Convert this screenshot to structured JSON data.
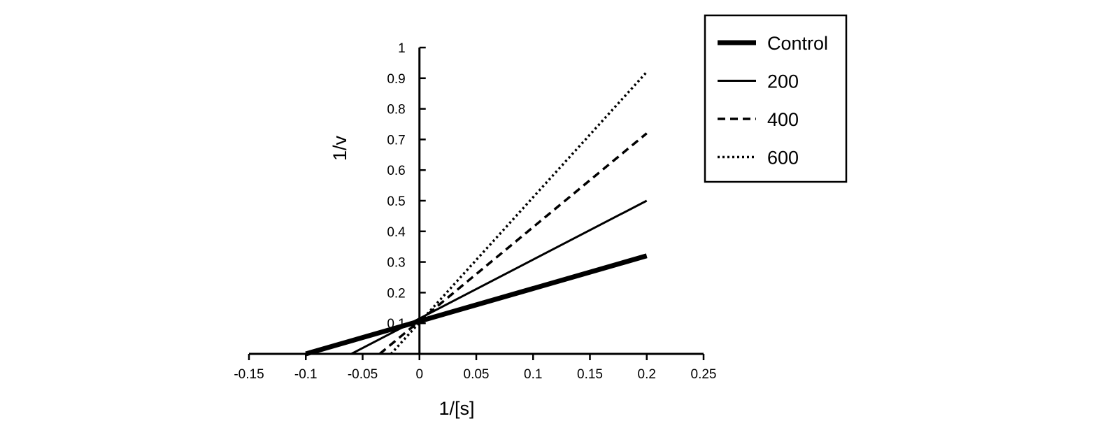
{
  "chart_data": {
    "type": "line",
    "xlabel": "1/[s]",
    "ylabel": "1/v",
    "xlim": [
      -0.15,
      0.25
    ],
    "ylim": [
      0,
      1
    ],
    "x_ticks": [
      -0.15,
      -0.1,
      -0.05,
      0,
      0.05,
      0.1,
      0.15,
      0.2,
      0.25
    ],
    "x_tick_labels": [
      "-0.15",
      "-0.1",
      "-0.05",
      "0",
      "0.05",
      "0.1",
      "0.15",
      "0.2",
      "0.25"
    ],
    "y_ticks": [
      0.1,
      0.2,
      0.3,
      0.4,
      0.5,
      0.6,
      0.7,
      0.8,
      0.9,
      1
    ],
    "y_tick_labels": [
      "0.1",
      "0.2",
      "0.3",
      "0.4",
      "0.5",
      "0.6",
      "0.7",
      "0.8",
      "0.9",
      "1"
    ],
    "grid": false,
    "legend_position": "top-right",
    "series": [
      {
        "name": "Control",
        "style": "thick-solid",
        "x": [
          -0.1,
          0.2
        ],
        "y": [
          0.0,
          0.32
        ]
      },
      {
        "name": "200",
        "style": "solid",
        "x": [
          -0.06,
          0.2
        ],
        "y": [
          0.0,
          0.5
        ]
      },
      {
        "name": "400",
        "style": "dashed",
        "x": [
          -0.035,
          0.2
        ],
        "y": [
          0.0,
          0.72
        ]
      },
      {
        "name": "600",
        "style": "dotted",
        "x": [
          -0.025,
          0.2
        ],
        "y": [
          0.0,
          0.92
        ]
      }
    ]
  }
}
